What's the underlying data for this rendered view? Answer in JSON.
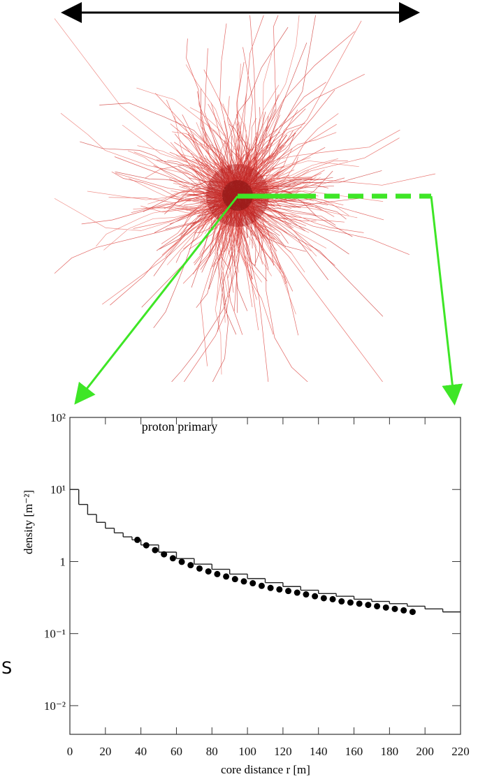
{
  "fragment_text": "S",
  "chart_data": {
    "type": "combo",
    "annotation": "proton primary",
    "xlabel": "core distance r [m]",
    "ylabel": "density [m⁻²]",
    "xlim": [
      0,
      220
    ],
    "xticks": [
      0,
      20,
      40,
      60,
      80,
      100,
      120,
      140,
      160,
      180,
      200,
      220
    ],
    "ylim": [
      0.004,
      100
    ],
    "log_y": true,
    "yticks": [
      {
        "value": 0.01,
        "label": "10⁻²"
      },
      {
        "value": 0.1,
        "label": "10⁻¹"
      },
      {
        "value": 1,
        "label": "1"
      },
      {
        "value": 10,
        "label": "10¹"
      },
      {
        "value": 100,
        "label": "10²"
      }
    ],
    "layers": [
      {
        "type": "step",
        "color": "#222222",
        "bins": [
          0,
          5,
          10,
          15,
          20,
          25,
          30,
          35,
          40,
          50,
          60,
          70,
          80,
          90,
          100,
          110,
          120,
          130,
          140,
          150,
          160,
          170,
          180,
          190,
          200,
          210,
          220
        ],
        "counts": [
          10,
          6.2,
          4.5,
          3.5,
          2.9,
          2.5,
          2.2,
          2.0,
          1.7,
          1.35,
          1.1,
          0.92,
          0.78,
          0.67,
          0.58,
          0.51,
          0.45,
          0.4,
          0.36,
          0.33,
          0.3,
          0.28,
          0.26,
          0.24,
          0.22,
          0.2
        ]
      },
      {
        "type": "scatter",
        "color": "#000000",
        "x": [
          38,
          43,
          48,
          53,
          58,
          63,
          68,
          73,
          78,
          83,
          88,
          93,
          98,
          103,
          108,
          113,
          118,
          123,
          128,
          133,
          138,
          143,
          148,
          153,
          158,
          163,
          168,
          173,
          178,
          183,
          188,
          193
        ],
        "values": [
          2.0,
          1.68,
          1.44,
          1.26,
          1.11,
          0.99,
          0.89,
          0.8,
          0.73,
          0.67,
          0.62,
          0.57,
          0.53,
          0.5,
          0.46,
          0.43,
          0.41,
          0.39,
          0.37,
          0.35,
          0.33,
          0.31,
          0.3,
          0.28,
          0.27,
          0.26,
          0.25,
          0.24,
          0.23,
          0.22,
          0.21,
          0.2
        ]
      }
    ]
  }
}
